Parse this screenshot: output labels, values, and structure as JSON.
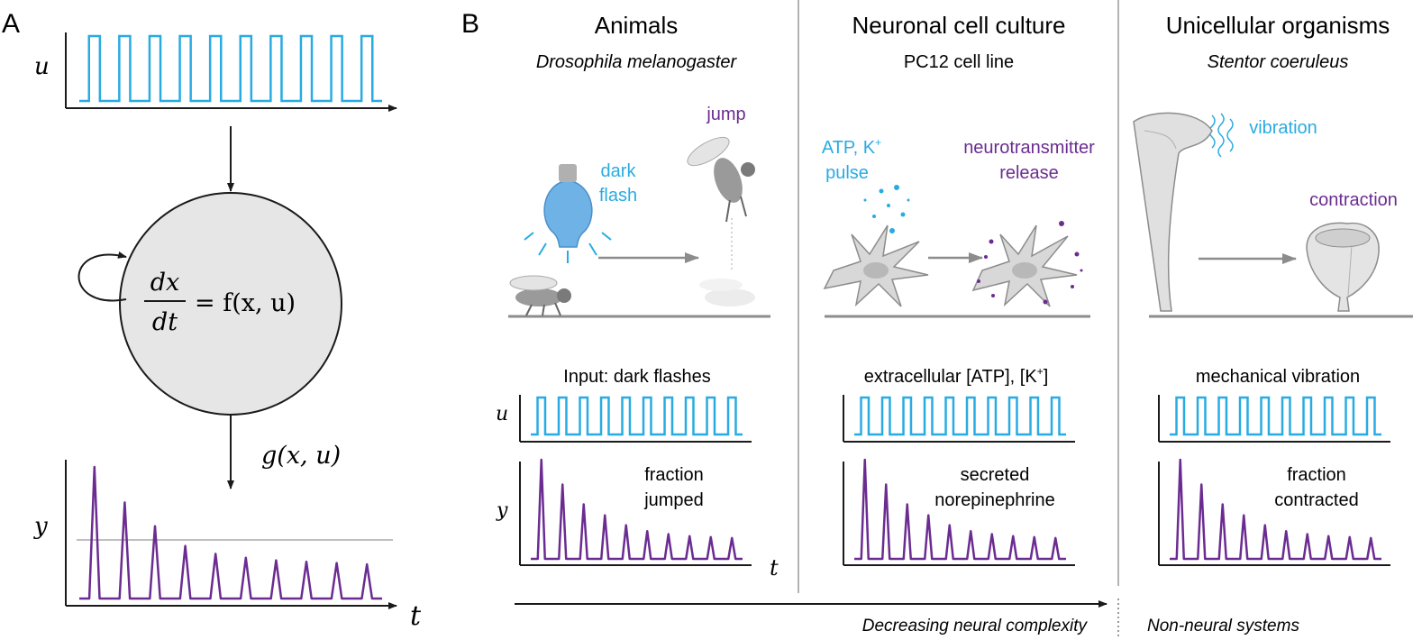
{
  "colors": {
    "input": "#29abe2",
    "output": "#6b2c91",
    "axis": "#1a1a1a",
    "panel_divider": "#9a9a9a",
    "threshold": "#aaaaaa",
    "node_fill": "#e6e6e6",
    "illustration_gray": "#8c8c8c"
  },
  "panelA": {
    "label": "A",
    "u_label": "u",
    "y_label": "y",
    "t_label": "t",
    "eq_num": "dx",
    "eq_den": "dt",
    "eq_rhs": "= f(x, u)",
    "readout": "g(x, u)",
    "icons": [
      "feedback-loop-arrow-icon",
      "down-arrow-icon"
    ]
  },
  "panelB": {
    "label": "B",
    "columns": [
      {
        "title": "Animals",
        "subtitle": "Drosophila melanogaster",
        "subtitle_italic": true,
        "stimulus": [
          "dark",
          "flash"
        ],
        "response": [
          "jump"
        ],
        "input_label": "Input: dark flashes",
        "output_label": [
          "fraction",
          "jumped"
        ],
        "icons": [
          "bulb-icon",
          "fly-icon",
          "jumping-fly-icon",
          "arrow-icon"
        ]
      },
      {
        "title": "Neuronal cell culture",
        "subtitle": "PC12 cell line",
        "subtitle_italic": false,
        "stimulus": [
          "ATP, K",
          "pulse"
        ],
        "stimulus_sup": "+",
        "response": [
          "neurotransmitter",
          "release"
        ],
        "input_label": "extracellular [ATP], [K",
        "input_label_sup": "+",
        "input_label_end": "]",
        "output_label": [
          "secreted",
          "norepinephrine"
        ],
        "icons": [
          "neuron-icon",
          "neuron-releasing-icon",
          "arrow-icon"
        ]
      },
      {
        "title": "Unicellular organisms",
        "subtitle": "Stentor coeruleus",
        "subtitle_italic": true,
        "stimulus": [
          "vibration"
        ],
        "response": [
          "contraction"
        ],
        "input_label": "mechanical vibration",
        "output_label": [
          "fraction",
          "contracted"
        ],
        "icons": [
          "stentor-extended-icon",
          "stentor-contracted-icon",
          "vibration-icon",
          "arrow-icon"
        ]
      }
    ],
    "u_label": "u",
    "y_label": "y",
    "t_label": "t",
    "bottom_left": "Decreasing neural complexity",
    "bottom_right": "Non-neural systems"
  },
  "chart_data": {
    "type": "line",
    "pulses": 10,
    "u_pulse_train": [
      1,
      1,
      1,
      1,
      1,
      1,
      1,
      1,
      1,
      1
    ],
    "y_peaks_A": [
      1.0,
      0.73,
      0.55,
      0.4,
      0.34,
      0.31,
      0.29,
      0.28,
      0.27,
      0.26
    ],
    "y_threshold_A": 0.47,
    "y_peaks_B": [
      1.0,
      0.75,
      0.55,
      0.44,
      0.34,
      0.28,
      0.25,
      0.23,
      0.22,
      0.21
    ],
    "series": [
      {
        "name": "u",
        "role": "input"
      },
      {
        "name": "y",
        "role": "output"
      }
    ]
  }
}
